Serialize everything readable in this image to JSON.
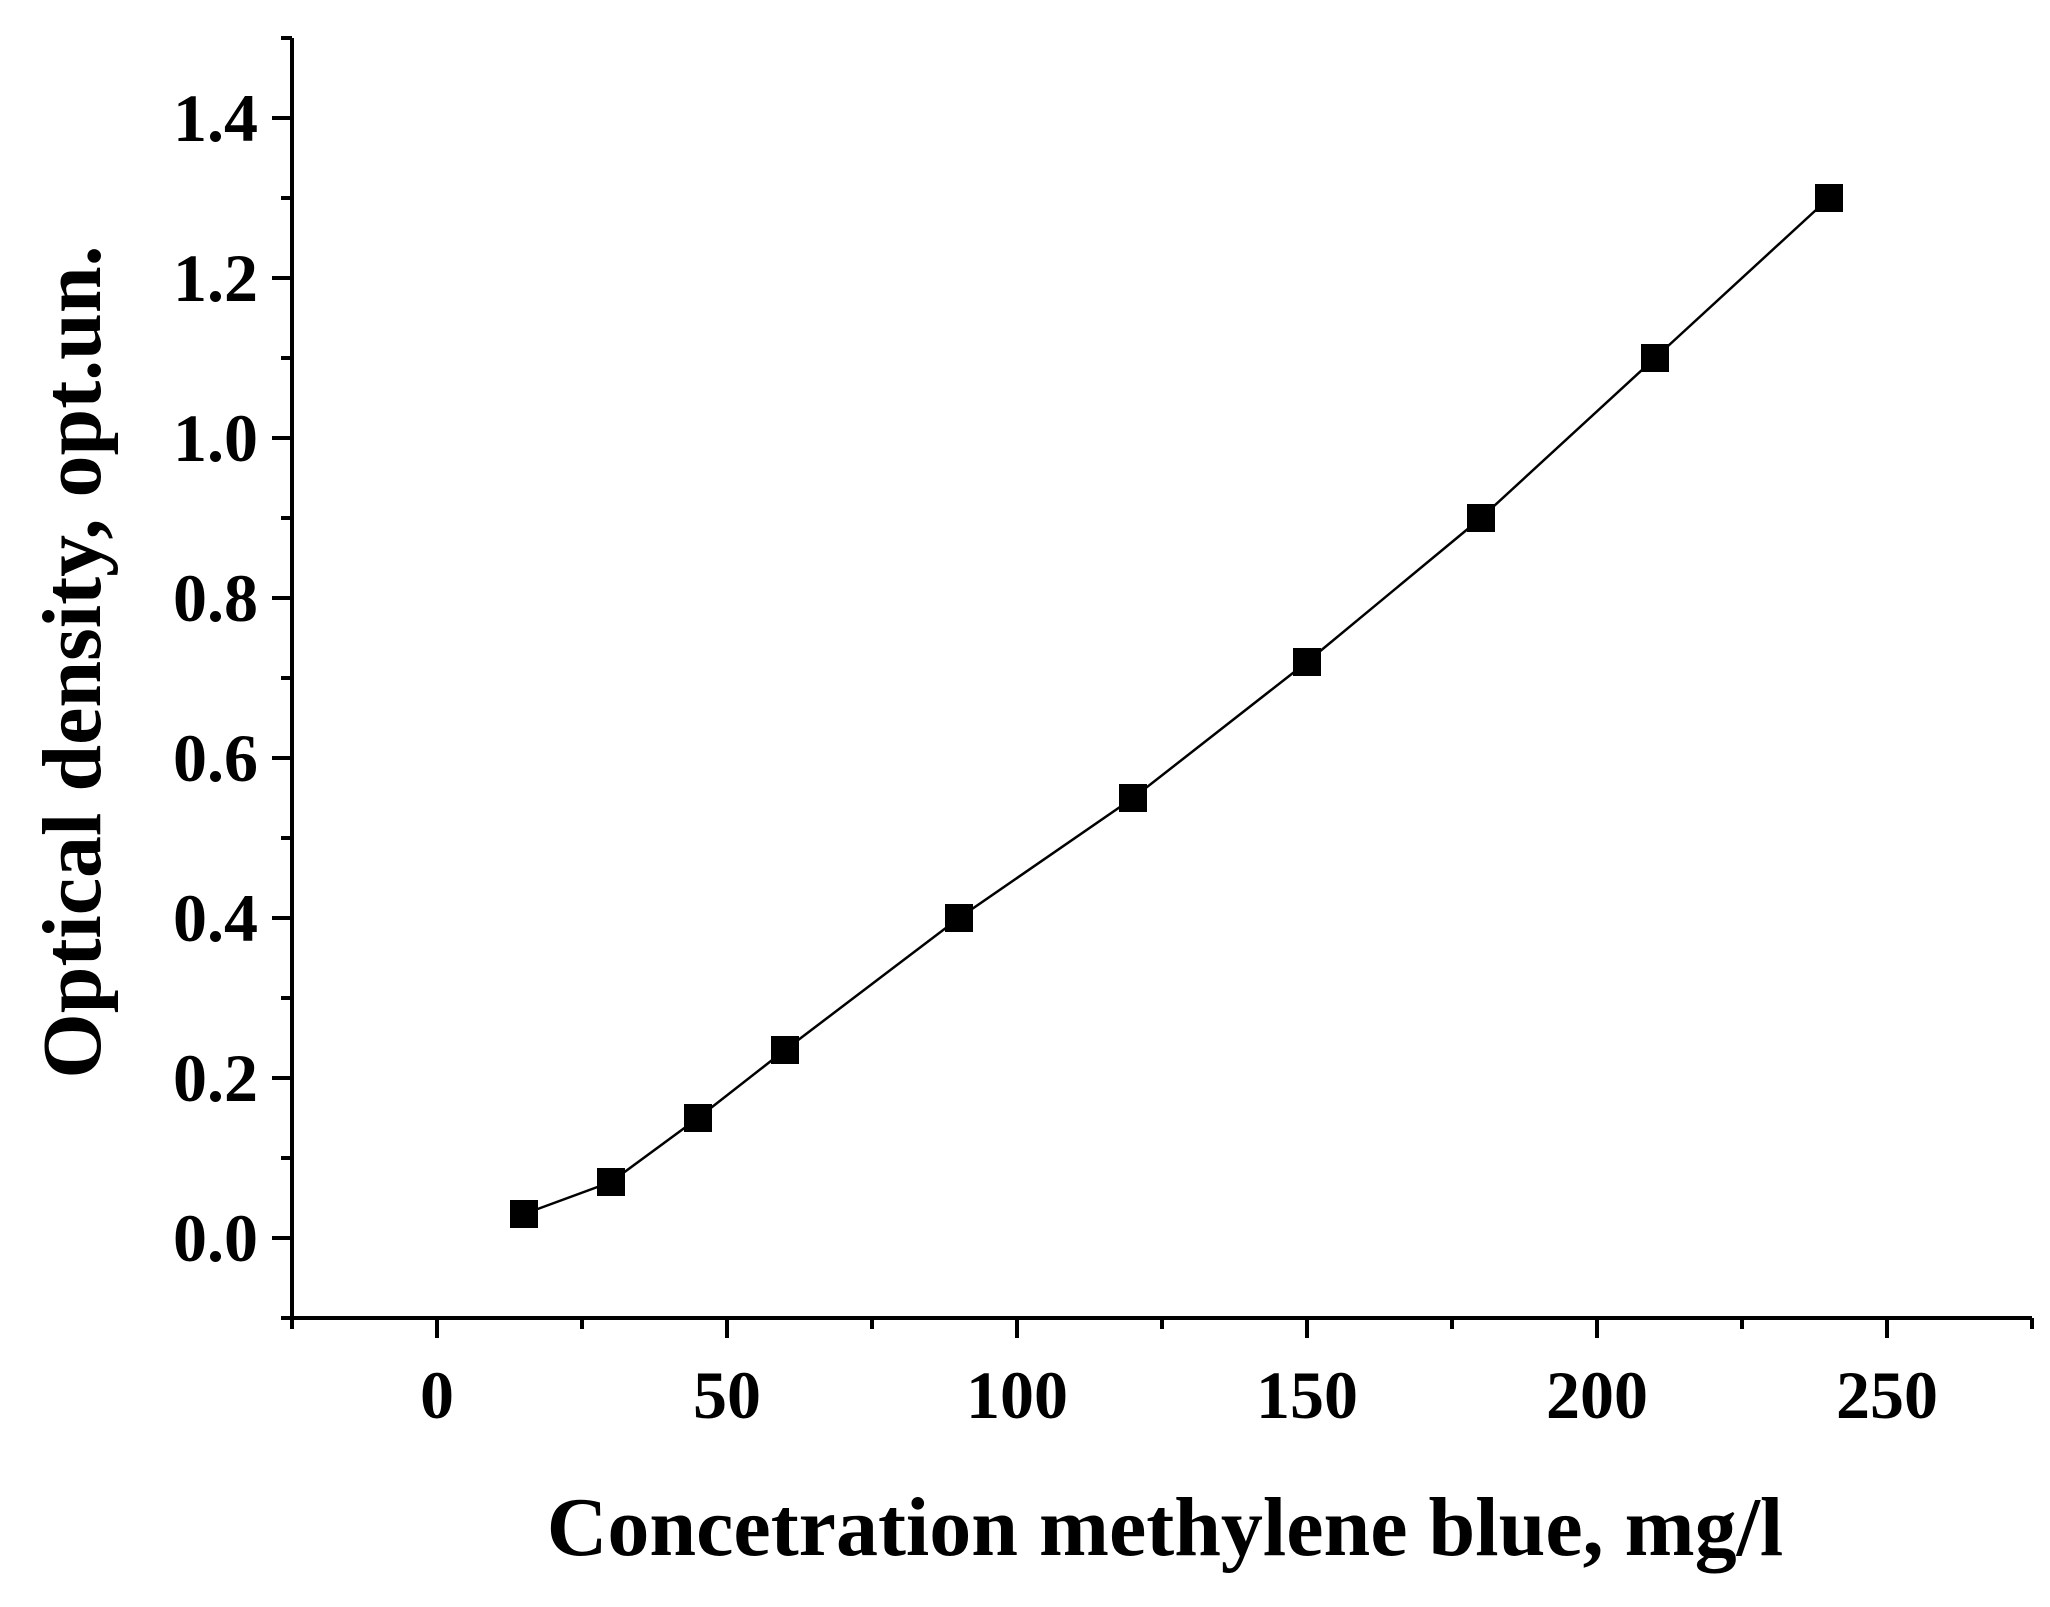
{
  "chart_data": {
    "type": "line",
    "title": "",
    "xlabel": "Concetration methylene blue, mg/l",
    "ylabel": "Optical density, opt.un.",
    "xlim": [
      -25,
      275
    ],
    "ylim": [
      -0.1,
      1.5
    ],
    "xticks": [
      0,
      50,
      100,
      150,
      200,
      250
    ],
    "xtick_labels": [
      "0",
      "50",
      "100",
      "150",
      "200",
      "250"
    ],
    "xminor": [
      -25,
      25,
      75,
      125,
      175,
      225,
      275
    ],
    "yticks": [
      0.0,
      0.2,
      0.4,
      0.6,
      0.8,
      1.0,
      1.2,
      1.4
    ],
    "ytick_labels": [
      "0.0",
      "0.2",
      "0.4",
      "0.6",
      "0.8",
      "1.0",
      "1.2",
      "1.4"
    ],
    "yminor": [
      -0.1,
      0.1,
      0.3,
      0.5,
      0.7,
      0.9,
      1.1,
      1.3,
      1.5
    ],
    "grid": false,
    "legend": "none",
    "series": [
      {
        "x": [
          15,
          30,
          45,
          60,
          90,
          120,
          150,
          180,
          210,
          240
        ],
        "y": [
          0.03,
          0.07,
          0.15,
          0.235,
          0.4,
          0.55,
          0.72,
          0.9,
          1.1,
          1.3
        ],
        "marker": "square",
        "color": "#000000"
      }
    ]
  }
}
